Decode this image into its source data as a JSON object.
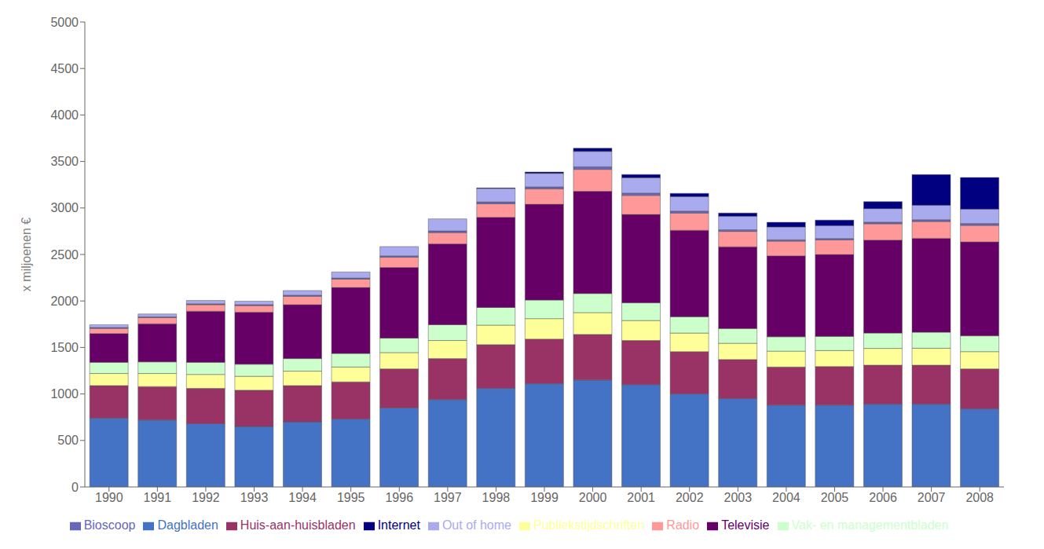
{
  "chart_data": {
    "type": "bar",
    "stacked": true,
    "ylabel": "x miljoenen €",
    "categories": [
      "1990",
      "1991",
      "1992",
      "1993",
      "1994",
      "1995",
      "1996",
      "1997",
      "1998",
      "1999",
      "2000",
      "2001",
      "2002",
      "2003",
      "2004",
      "2005",
      "2006",
      "2007",
      "2008"
    ],
    "series": [
      {
        "name": "Dagbladen",
        "color": "#4472C4",
        "values": [
          740,
          720,
          680,
          650,
          700,
          730,
          850,
          940,
          1060,
          1110,
          1150,
          1100,
          1000,
          950,
          880,
          880,
          890,
          890,
          840
        ]
      },
      {
        "name": "Huis-aan-huisbladen",
        "color": "#993366",
        "values": [
          350,
          360,
          380,
          390,
          390,
          400,
          420,
          440,
          470,
          480,
          490,
          475,
          455,
          420,
          410,
          415,
          420,
          420,
          430
        ]
      },
      {
        "name": "Publiekstijdschriften",
        "color": "#FFFF99",
        "values": [
          130,
          140,
          150,
          150,
          155,
          160,
          175,
          195,
          210,
          220,
          235,
          215,
          200,
          175,
          170,
          172,
          180,
          182,
          185
        ]
      },
      {
        "name": "Vak- en managementbladen",
        "color": "#CCFFCC",
        "values": [
          120,
          125,
          130,
          130,
          135,
          145,
          155,
          170,
          190,
          200,
          205,
          190,
          175,
          158,
          155,
          152,
          165,
          172,
          170
        ]
      },
      {
        "name": "Televisie",
        "color": "#660066",
        "values": [
          310,
          410,
          550,
          560,
          580,
          710,
          760,
          870,
          970,
          1030,
          1100,
          950,
          930,
          880,
          870,
          880,
          1000,
          1010,
          1010
        ]
      },
      {
        "name": "Radio",
        "color": "#FF9999",
        "values": [
          55,
          65,
          70,
          70,
          90,
          90,
          110,
          120,
          145,
          165,
          235,
          205,
          185,
          165,
          158,
          158,
          175,
          180,
          178
        ]
      },
      {
        "name": "Bioscoop",
        "color": "#6666BB",
        "values": [
          10,
          10,
          10,
          10,
          12,
          12,
          15,
          18,
          20,
          22,
          28,
          25,
          22,
          18,
          15,
          15,
          18,
          20,
          20
        ]
      },
      {
        "name": "Out of home",
        "color": "#AAAAEE",
        "values": [
          30,
          30,
          35,
          38,
          50,
          65,
          100,
          130,
          145,
          145,
          165,
          165,
          155,
          145,
          138,
          138,
          145,
          155,
          155
        ]
      },
      {
        "name": "Internet",
        "color": "#000080",
        "values": [
          0,
          0,
          0,
          0,
          0,
          0,
          0,
          0,
          5,
          15,
          35,
          35,
          35,
          35,
          50,
          60,
          75,
          330,
          340
        ]
      }
    ],
    "ylim": [
      0,
      5000
    ],
    "yticks": [
      0,
      500,
      1000,
      1500,
      2000,
      2500,
      3000,
      3500,
      4000,
      4500,
      5000
    ],
    "grid": false,
    "legend": "bottom"
  }
}
